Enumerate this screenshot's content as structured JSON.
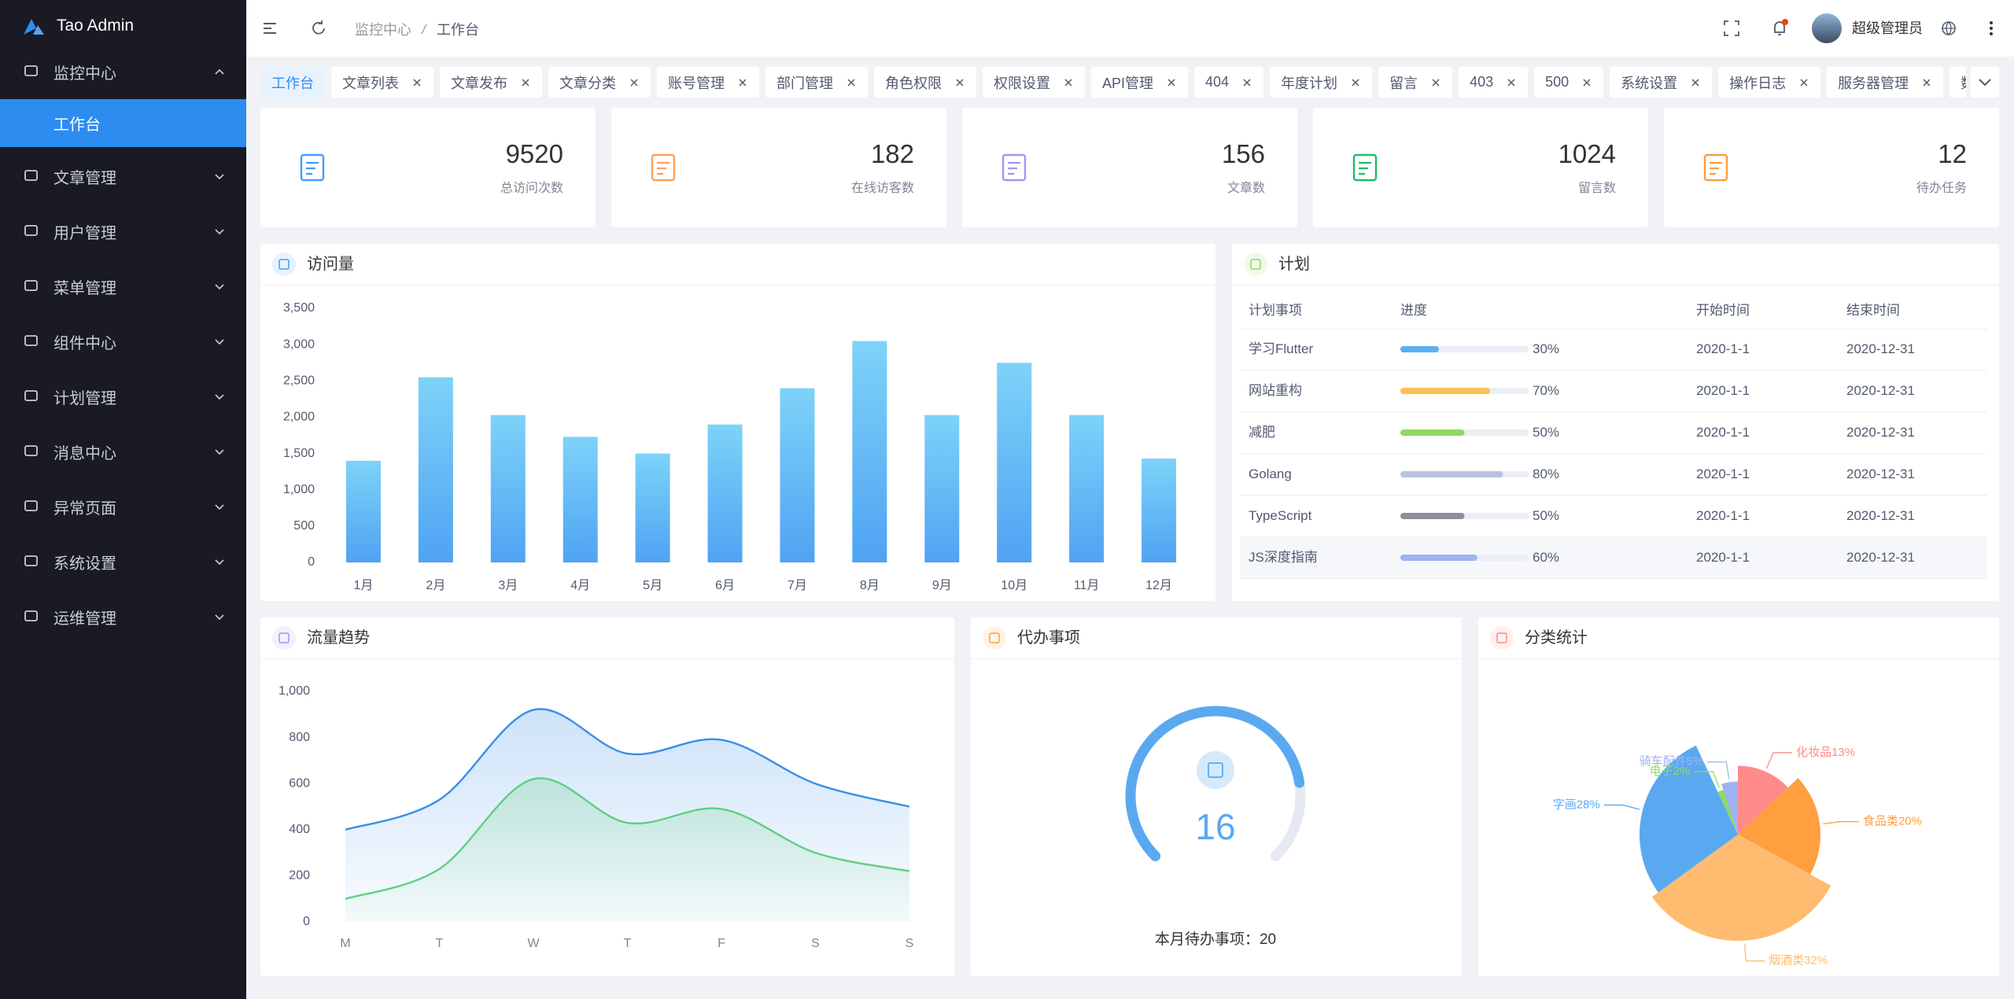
{
  "sidebar": {
    "brand": "Tao Admin",
    "menu": [
      {
        "label": "监控中心",
        "children": [
          "工作台"
        ]
      },
      {
        "label": "文章管理"
      },
      {
        "label": "用户管理"
      },
      {
        "label": "菜单管理"
      },
      {
        "label": "组件中心"
      },
      {
        "label": "计划管理"
      },
      {
        "label": "消息中心"
      },
      {
        "label": "异常页面"
      },
      {
        "label": "系统设置"
      },
      {
        "label": "运维管理"
      }
    ]
  },
  "header": {
    "breadcrumb": [
      "监控中心",
      "工作台"
    ],
    "user": "超级管理员"
  },
  "tabs": [
    "工作台",
    "文章列表",
    "文章发布",
    "文章分类",
    "账号管理",
    "部门管理",
    "角色权限",
    "权限设置",
    "API管理",
    "404",
    "年度计划",
    "留言",
    "403",
    "500",
    "系统设置",
    "操作日志",
    "服务器管理",
    "数据库管理"
  ],
  "stats": [
    {
      "value": 9520,
      "label": "总访问次数",
      "color": "#409eff"
    },
    {
      "value": 182,
      "label": "在线访客数",
      "color": "#ff9f5a"
    },
    {
      "value": 156,
      "label": "文章数",
      "color": "#a394f0"
    },
    {
      "value": 1024,
      "label": "留言数",
      "color": "#19be6b"
    },
    {
      "value": 12,
      "label": "待办任务",
      "color": "#ff9c3a"
    }
  ],
  "plan": {
    "title": "计划",
    "columns": [
      "计划事项",
      "进度",
      "开始时间",
      "结束时间"
    ],
    "rows": [
      {
        "name": "学习Flutter",
        "progress": 30,
        "progress_label": "30%",
        "color": "#5ab1ef",
        "start": "2020-1-1",
        "end": "2020-12-31"
      },
      {
        "name": "网站重构",
        "progress": 70,
        "progress_label": "70%",
        "color": "#ffbe5c",
        "start": "2020-1-1",
        "end": "2020-12-31"
      },
      {
        "name": "减肥",
        "progress": 50,
        "progress_label": "50%",
        "color": "#91d85f",
        "start": "2020-1-1",
        "end": "2020-12-31"
      },
      {
        "name": "Golang",
        "progress": 80,
        "progress_label": "80%",
        "color": "#b6c4dc",
        "start": "2020-1-1",
        "end": "2020-12-31"
      },
      {
        "name": "TypeScript",
        "progress": 50,
        "progress_label": "50%",
        "color": "#8a8f99",
        "start": "2020-1-1",
        "end": "2020-12-31"
      },
      {
        "name": "JS深度指南",
        "progress": 60,
        "progress_label": "60%",
        "color": "#9fb2ee",
        "start": "2020-1-1",
        "end": "2020-12-31"
      }
    ]
  },
  "chart_data": [
    {
      "type": "bar",
      "title": "访问量",
      "categories": [
        "1月",
        "2月",
        "3月",
        "4月",
        "5月",
        "6月",
        "7月",
        "8月",
        "9月",
        "10月",
        "11月",
        "12月"
      ],
      "values": [
        1400,
        2550,
        2030,
        1730,
        1500,
        1900,
        2400,
        3050,
        2030,
        2750,
        2030,
        1430
      ],
      "color": [
        "#7dd3f8",
        "#4fa3f3"
      ],
      "ylim": [
        0,
        3500
      ],
      "yticks": [
        0,
        500,
        {
          "value": 1000,
          "label": "1,000"
        },
        {
          "value": 1500,
          "label": "1,500"
        },
        {
          "value": 2000,
          "label": "2,000"
        },
        {
          "value": 2500,
          "label": "2,500"
        },
        {
          "value": 3000,
          "label": "3,000"
        },
        {
          "value": 3500,
          "label": "3,500"
        }
      ],
      "grid": false
    },
    {
      "type": "line",
      "title": "流量趋势",
      "categories": [
        "M",
        "T",
        "W",
        "T",
        "F",
        "S",
        "S"
      ],
      "series": [
        {
          "color": "#3a8ee6",
          "values": [
            400,
            530,
            920,
            730,
            790,
            600,
            500
          ]
        },
        {
          "color": "#5fcf80",
          "values": [
            100,
            230,
            620,
            430,
            490,
            300,
            220
          ]
        }
      ],
      "smooth": true,
      "area": true,
      "ylim": [
        0,
        1000
      ],
      "yticks": [
        0,
        200,
        400,
        600,
        800,
        {
          "value": 1000,
          "label": "1,000"
        }
      ],
      "grid": false
    },
    {
      "type": "gauge",
      "title": "代办事项",
      "value": 16,
      "max": 20,
      "caption": "本月待办事项：",
      "color": "#5aa9f0"
    },
    {
      "type": "pie",
      "title": "分类统计",
      "categories": [
        "化妆品",
        "食品类",
        "烟酒类",
        "字画",
        "电子",
        "骑车配件"
      ],
      "values": [
        13,
        20,
        32,
        28,
        2,
        5
      ],
      "value_labels": [
        "13%",
        "20%",
        "32%",
        "28%",
        "2%",
        "5%"
      ],
      "colors": [
        "#ff8a8a",
        "#ff9f40",
        "#ffbc70",
        "#5aa9f0",
        "#8edb5f",
        "#9fb3f0"
      ],
      "rose": true
    }
  ]
}
